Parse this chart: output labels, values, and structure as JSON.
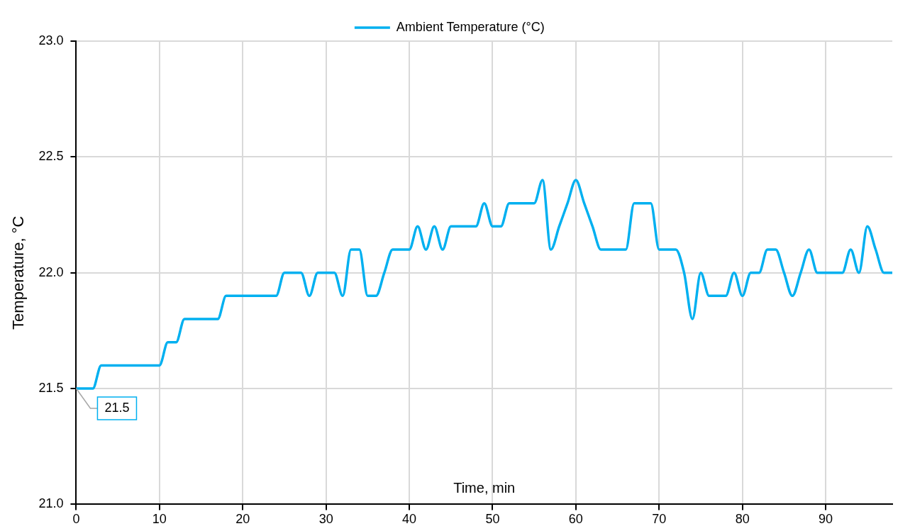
{
  "chart_data": {
    "type": "line",
    "xlabel": "Time, min",
    "ylabel": "Temperature, °C",
    "x": [
      0,
      1,
      2,
      3,
      4,
      5,
      6,
      7,
      8,
      9,
      10,
      11,
      12,
      13,
      14,
      15,
      16,
      17,
      18,
      19,
      20,
      21,
      22,
      23,
      24,
      25,
      26,
      27,
      28,
      29,
      30,
      31,
      32,
      33,
      34,
      35,
      36,
      37,
      38,
      39,
      40,
      41,
      42,
      43,
      44,
      45,
      46,
      47,
      48,
      49,
      50,
      51,
      52,
      53,
      54,
      55,
      56,
      57,
      58,
      59,
      60,
      61,
      62,
      63,
      64,
      65,
      66,
      67,
      68,
      69,
      70,
      71,
      72,
      73,
      74,
      75,
      76,
      77,
      78,
      79,
      80,
      81,
      82,
      83,
      84,
      85,
      86,
      87,
      88,
      89,
      90,
      91,
      92,
      93,
      94,
      95,
      96,
      97,
      98
    ],
    "series": [
      {
        "name": "Ambient Temperature (°C)",
        "color": "#00b0f0",
        "values": [
          21.5,
          21.5,
          21.5,
          21.6,
          21.6,
          21.6,
          21.6,
          21.6,
          21.6,
          21.6,
          21.6,
          21.7,
          21.7,
          21.8,
          21.8,
          21.8,
          21.8,
          21.8,
          21.9,
          21.9,
          21.9,
          21.9,
          21.9,
          21.9,
          21.9,
          22.0,
          22.0,
          22.0,
          21.9,
          22.0,
          22.0,
          22.0,
          21.9,
          22.1,
          22.1,
          21.9,
          21.9,
          22.0,
          22.1,
          22.1,
          22.1,
          22.2,
          22.1,
          22.2,
          22.1,
          22.2,
          22.2,
          22.2,
          22.2,
          22.3,
          22.2,
          22.2,
          22.3,
          22.3,
          22.3,
          22.3,
          22.4,
          22.1,
          22.2,
          22.3,
          22.4,
          22.3,
          22.2,
          22.1,
          22.1,
          22.1,
          22.1,
          22.3,
          22.3,
          22.3,
          22.1,
          22.1,
          22.1,
          22.0,
          21.8,
          22.0,
          21.9,
          21.9,
          21.9,
          22.0,
          21.9,
          22.0,
          22.0,
          22.1,
          22.1,
          22.0,
          21.9,
          22.0,
          22.1,
          22.0,
          22.0,
          22.0,
          22.0,
          22.1,
          22.0,
          22.2,
          22.1,
          22.0,
          22.0
        ],
        "value_labels": [
          "21.5",
          null,
          null,
          null,
          null,
          null,
          null,
          null,
          null,
          null,
          null,
          null,
          null,
          null,
          null,
          null,
          null,
          null,
          null,
          null,
          null,
          null,
          null,
          null,
          null,
          null,
          null,
          null,
          null,
          null,
          null,
          null,
          null,
          null,
          null,
          null,
          null,
          null,
          null,
          null,
          null,
          null,
          null,
          null,
          null,
          null,
          null,
          null,
          null,
          null,
          null,
          null,
          null,
          null,
          null,
          null,
          null,
          null,
          null,
          null,
          null,
          null,
          null,
          null,
          null,
          null,
          null,
          null,
          null,
          null,
          null,
          null,
          null,
          null,
          null,
          null,
          null,
          null,
          null,
          null,
          null,
          null,
          null,
          null,
          null,
          null,
          null,
          null,
          null,
          null,
          null,
          null,
          null,
          null,
          null,
          null,
          null,
          null,
          null
        ]
      }
    ],
    "xlim": [
      0,
      98
    ],
    "xticks": [
      0,
      10,
      20,
      30,
      40,
      50,
      60,
      70,
      80,
      90
    ],
    "ylim": [
      21.0,
      23.0
    ],
    "yticks": [
      {
        "value": 21.0,
        "label": "21.0"
      },
      {
        "value": 21.5,
        "label": "21.5"
      },
      {
        "value": 22.0,
        "label": "22.0"
      },
      {
        "value": 22.5,
        "label": "22.5"
      },
      {
        "value": 23.0,
        "label": "23.0"
      }
    ],
    "grid": true,
    "legend": "top",
    "marker": "none",
    "line_style": "solid"
  }
}
